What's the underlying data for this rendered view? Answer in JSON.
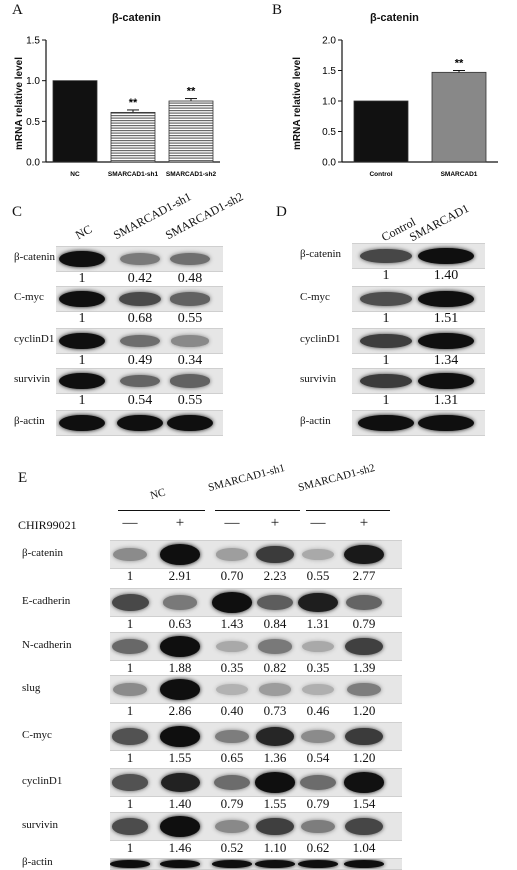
{
  "panel_letters": {
    "a": "A",
    "b": "B",
    "c": "C",
    "d": "D",
    "e": "E"
  },
  "chart_data": [
    {
      "type": "bar",
      "title": "β-catenin",
      "ylabel": "mRNA relative level",
      "categories": [
        "NC",
        "SMARCAD1-sh1",
        "SMARCAD1-sh2"
      ],
      "values": [
        1.0,
        0.61,
        0.75
      ],
      "errors": [
        0,
        0.03,
        0.03
      ],
      "significance": [
        "",
        "**",
        "**"
      ],
      "fills": [
        "#111111",
        "stripes",
        "stripes"
      ],
      "yticks": [
        "0.0",
        "0.5",
        "1.0",
        "1.5"
      ],
      "ylim": [
        0,
        1.5
      ]
    },
    {
      "type": "bar",
      "title": "β-catenin",
      "ylabel": "mRNA relative level",
      "categories": [
        "Control",
        "SMARCAD1"
      ],
      "values": [
        1.0,
        1.47
      ],
      "errors": [
        0,
        0.03
      ],
      "significance": [
        "",
        "**"
      ],
      "fills": [
        "#111111",
        "#888888"
      ],
      "yticks": [
        "0.0",
        "0.5",
        "1.0",
        "1.5",
        "2.0"
      ],
      "ylim": [
        0,
        2.0
      ]
    }
  ],
  "panel_c": {
    "lanes": [
      "NC",
      "SMARCAD1-sh1",
      "SMARCAD1-sh2"
    ],
    "rows": [
      {
        "label": "β-catenin",
        "values": [
          "1",
          "0.42",
          "0.48"
        ],
        "intensity": [
          1.0,
          0.42,
          0.48
        ]
      },
      {
        "label": "C-myc",
        "values": [
          "1",
          "0.68",
          "0.55"
        ],
        "intensity": [
          1.0,
          0.68,
          0.55
        ]
      },
      {
        "label": "cyclinD1",
        "values": [
          "1",
          "0.49",
          "0.34"
        ],
        "intensity": [
          1.0,
          0.49,
          0.34
        ]
      },
      {
        "label": "survivin",
        "values": [
          "1",
          "0.54",
          "0.55"
        ],
        "intensity": [
          1.0,
          0.54,
          0.55
        ]
      },
      {
        "label": "β-actin",
        "values": [],
        "intensity": [
          1,
          1,
          1
        ]
      }
    ]
  },
  "panel_d": {
    "lanes": [
      "Control",
      "SMARCAD1"
    ],
    "rows": [
      {
        "label": "β-catenin",
        "values": [
          "1",
          "1.40"
        ],
        "intensity": [
          0.7,
          1.0
        ]
      },
      {
        "label": "C-myc",
        "values": [
          "1",
          "1.51"
        ],
        "intensity": [
          0.66,
          1.0
        ]
      },
      {
        "label": "cyclinD1",
        "values": [
          "1",
          "1.34"
        ],
        "intensity": [
          0.75,
          1.0
        ]
      },
      {
        "label": "survivin",
        "values": [
          "1",
          "1.31"
        ],
        "intensity": [
          0.76,
          1.0
        ]
      },
      {
        "label": "β-actin",
        "values": [],
        "intensity": [
          1,
          1
        ]
      }
    ]
  },
  "panel_e": {
    "groups": [
      "NC",
      "SMARCAD1-sh1",
      "SMARCAD1-sh2"
    ],
    "treatment_label": "CHIR99021",
    "signs": [
      "—",
      "+",
      "—",
      "+",
      "—",
      "+"
    ],
    "rows": [
      {
        "label": "β-catenin",
        "values": [
          "1",
          "2.91",
          "0.70",
          "2.23",
          "0.55",
          "2.77"
        ],
        "intensity": [
          0.35,
          1.0,
          0.25,
          0.77,
          0.19,
          0.95
        ]
      },
      {
        "label": "E-cadherin",
        "values": [
          "1",
          "0.63",
          "1.43",
          "0.84",
          "1.31",
          "0.79"
        ],
        "intensity": [
          0.7,
          0.44,
          1.0,
          0.59,
          0.92,
          0.55
        ]
      },
      {
        "label": "N-cadherin",
        "values": [
          "1",
          "1.88",
          "0.35",
          "0.82",
          "0.35",
          "1.39"
        ],
        "intensity": [
          0.53,
          1.0,
          0.19,
          0.44,
          0.19,
          0.74
        ]
      },
      {
        "label": "slug",
        "values": [
          "1",
          "2.86",
          "0.40",
          "0.73",
          "0.46",
          "1.20"
        ],
        "intensity": [
          0.35,
          1.0,
          0.14,
          0.26,
          0.16,
          0.42
        ]
      },
      {
        "label": "C-myc",
        "values": [
          "1",
          "1.55",
          "0.65",
          "1.36",
          "0.54",
          "1.20"
        ],
        "intensity": [
          0.65,
          1.0,
          0.42,
          0.88,
          0.35,
          0.77
        ]
      },
      {
        "label": "cyclinD1",
        "values": [
          "1",
          "1.40",
          "0.79",
          "1.55",
          "0.79",
          "1.54"
        ],
        "intensity": [
          0.65,
          0.9,
          0.51,
          1.0,
          0.51,
          0.99
        ]
      },
      {
        "label": "survivin",
        "values": [
          "1",
          "1.46",
          "0.52",
          "1.10",
          "0.62",
          "1.04"
        ],
        "intensity": [
          0.68,
          1.0,
          0.36,
          0.75,
          0.42,
          0.71
        ]
      },
      {
        "label": "β-actin",
        "values": [],
        "intensity": [
          1,
          1,
          1,
          1,
          1,
          1
        ]
      }
    ]
  }
}
